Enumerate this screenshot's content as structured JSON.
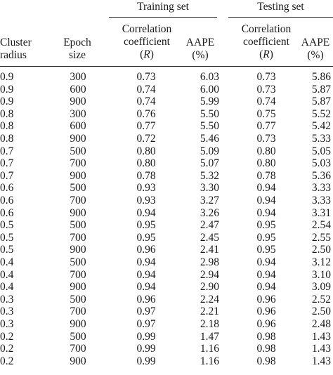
{
  "groups": {
    "training": "Training set",
    "testing": "Testing set"
  },
  "headers": {
    "cluster_radius": [
      "Cluster",
      "radius"
    ],
    "epoch_size": [
      "Epoch",
      "size"
    ],
    "correlation": [
      "Correlation",
      "coefficient"
    ],
    "correlation_symbol": "R",
    "aape": "AAPE",
    "aape_unit": "(%)"
  },
  "rows": [
    {
      "radius": "0.9",
      "epoch": "300",
      "train_r": "0.73",
      "train_aape": "6.03",
      "test_r": "0.73",
      "test_aape": "5.86"
    },
    {
      "radius": "0.9",
      "epoch": "600",
      "train_r": "0.74",
      "train_aape": "6.00",
      "test_r": "0.73",
      "test_aape": "5.87"
    },
    {
      "radius": "0.9",
      "epoch": "900",
      "train_r": "0.74",
      "train_aape": "5.99",
      "test_r": "0.74",
      "test_aape": "5.87"
    },
    {
      "radius": "0.8",
      "epoch": "300",
      "train_r": "0.76",
      "train_aape": "5.50",
      "test_r": "0.75",
      "test_aape": "5.52"
    },
    {
      "radius": "0.8",
      "epoch": "600",
      "train_r": "0.77",
      "train_aape": "5.50",
      "test_r": "0.77",
      "test_aape": "5.42"
    },
    {
      "radius": "0.8",
      "epoch": "900",
      "train_r": "0.72",
      "train_aape": "5.46",
      "test_r": "0.73",
      "test_aape": "5.33"
    },
    {
      "radius": "0.7",
      "epoch": "500",
      "train_r": "0.80",
      "train_aape": "5.09",
      "test_r": "0.80",
      "test_aape": "5.05"
    },
    {
      "radius": "0.7",
      "epoch": "700",
      "train_r": "0.80",
      "train_aape": "5.07",
      "test_r": "0.80",
      "test_aape": "5.03"
    },
    {
      "radius": "0.7",
      "epoch": "900",
      "train_r": "0.78",
      "train_aape": "5.32",
      "test_r": "0.78",
      "test_aape": "5.36"
    },
    {
      "radius": "0.6",
      "epoch": "500",
      "train_r": "0.93",
      "train_aape": "3.30",
      "test_r": "0.94",
      "test_aape": "3.33"
    },
    {
      "radius": "0.6",
      "epoch": "700",
      "train_r": "0.93",
      "train_aape": "3.27",
      "test_r": "0.94",
      "test_aape": "3.33"
    },
    {
      "radius": "0.6",
      "epoch": "900",
      "train_r": "0.94",
      "train_aape": "3.26",
      "test_r": "0.94",
      "test_aape": "3.31"
    },
    {
      "radius": "0.5",
      "epoch": "500",
      "train_r": "0.95",
      "train_aape": "2.47",
      "test_r": "0.95",
      "test_aape": "2.54"
    },
    {
      "radius": "0.5",
      "epoch": "700",
      "train_r": "0.95",
      "train_aape": "2.45",
      "test_r": "0.95",
      "test_aape": "2.55"
    },
    {
      "radius": "0.5",
      "epoch": "900",
      "train_r": "0.96",
      "train_aape": "2.41",
      "test_r": "0.95",
      "test_aape": "2.50"
    },
    {
      "radius": "0.4",
      "epoch": "500",
      "train_r": "0.94",
      "train_aape": "2.98",
      "test_r": "0.94",
      "test_aape": "3.12"
    },
    {
      "radius": "0.4",
      "epoch": "700",
      "train_r": "0.94",
      "train_aape": "2.94",
      "test_r": "0.94",
      "test_aape": "3.10"
    },
    {
      "radius": "0.4",
      "epoch": "900",
      "train_r": "0.94",
      "train_aape": "2.90",
      "test_r": "0.94",
      "test_aape": "3.09"
    },
    {
      "radius": "0.3",
      "epoch": "500",
      "train_r": "0.96",
      "train_aape": "2.24",
      "test_r": "0.96",
      "test_aape": "2.52"
    },
    {
      "radius": "0.3",
      "epoch": "700",
      "train_r": "0.97",
      "train_aape": "2.21",
      "test_r": "0.96",
      "test_aape": "2.50"
    },
    {
      "radius": "0.3",
      "epoch": "900",
      "train_r": "0.97",
      "train_aape": "2.18",
      "test_r": "0.96",
      "test_aape": "2.48"
    },
    {
      "radius": "0.2",
      "epoch": "500",
      "train_r": "0.99",
      "train_aape": "1.47",
      "test_r": "0.98",
      "test_aape": "1.43"
    },
    {
      "radius": "0.2",
      "epoch": "700",
      "train_r": "0.99",
      "train_aape": "1.16",
      "test_r": "0.98",
      "test_aape": "1.43"
    },
    {
      "radius": "0.2",
      "epoch": "900",
      "train_r": "0.99",
      "train_aape": "1.16",
      "test_r": "0.98",
      "test_aape": "1.43"
    }
  ]
}
